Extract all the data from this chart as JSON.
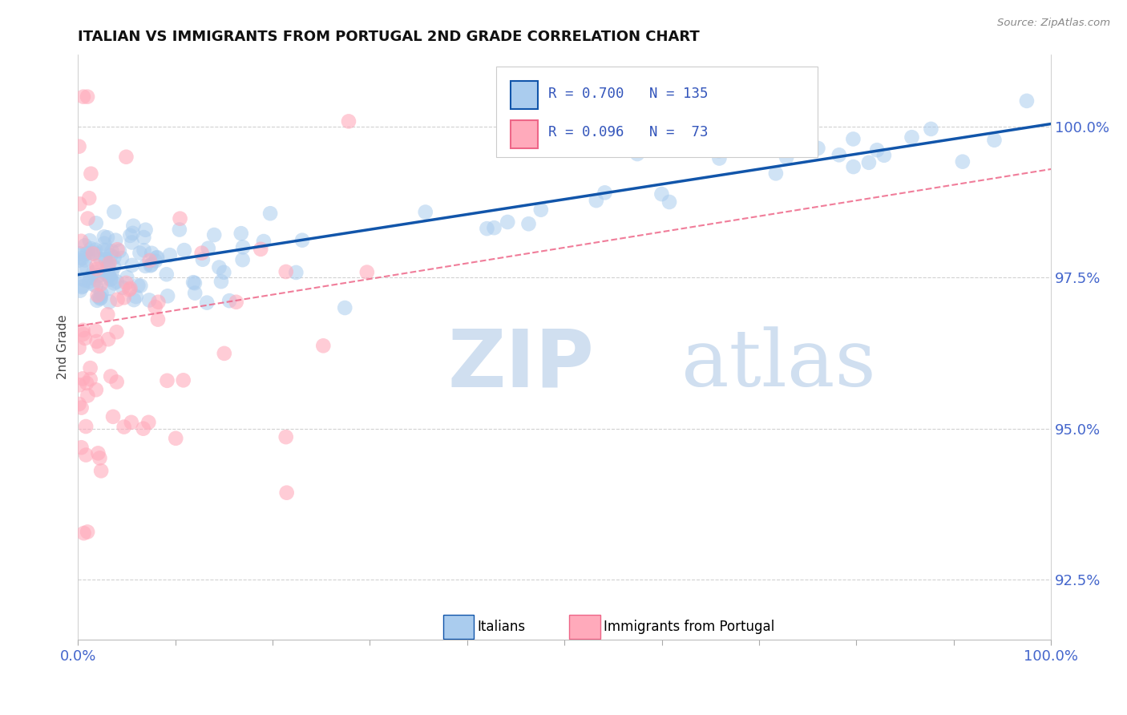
{
  "title": "ITALIAN VS IMMIGRANTS FROM PORTUGAL 2ND GRADE CORRELATION CHART",
  "source_text": "Source: ZipAtlas.com",
  "ylabel": "2nd Grade",
  "xlim": [
    0.0,
    100.0
  ],
  "ylim": [
    91.5,
    101.2
  ],
  "yticks": [
    92.5,
    95.0,
    97.5,
    100.0
  ],
  "ytick_labels": [
    "92.5%",
    "95.0%",
    "97.5%",
    "100.0%"
  ],
  "xtick_labels": [
    "0.0%",
    "100.0%"
  ],
  "legend_label_blue": "Italians",
  "legend_label_pink": "Immigrants from Portugal",
  "blue_color": "#aaccee",
  "pink_color": "#ffaabb",
  "blue_line_color": "#1155aa",
  "pink_line_color": "#ee6688",
  "watermark_zip": "ZIP",
  "watermark_atlas": "atlas",
  "watermark_color": "#d0dff0",
  "background_color": "#ffffff",
  "grid_color": "#cccccc",
  "title_color": "#111111",
  "axis_label_color": "#444444",
  "tick_color": "#4466cc",
  "blue_trend_x0": 0.0,
  "blue_trend_y0": 97.55,
  "blue_trend_x1": 100.0,
  "blue_trend_y1": 100.05,
  "pink_trend_x0": 0.0,
  "pink_trend_y0": 96.7,
  "pink_trend_x1": 100.0,
  "pink_trend_y1": 99.3
}
